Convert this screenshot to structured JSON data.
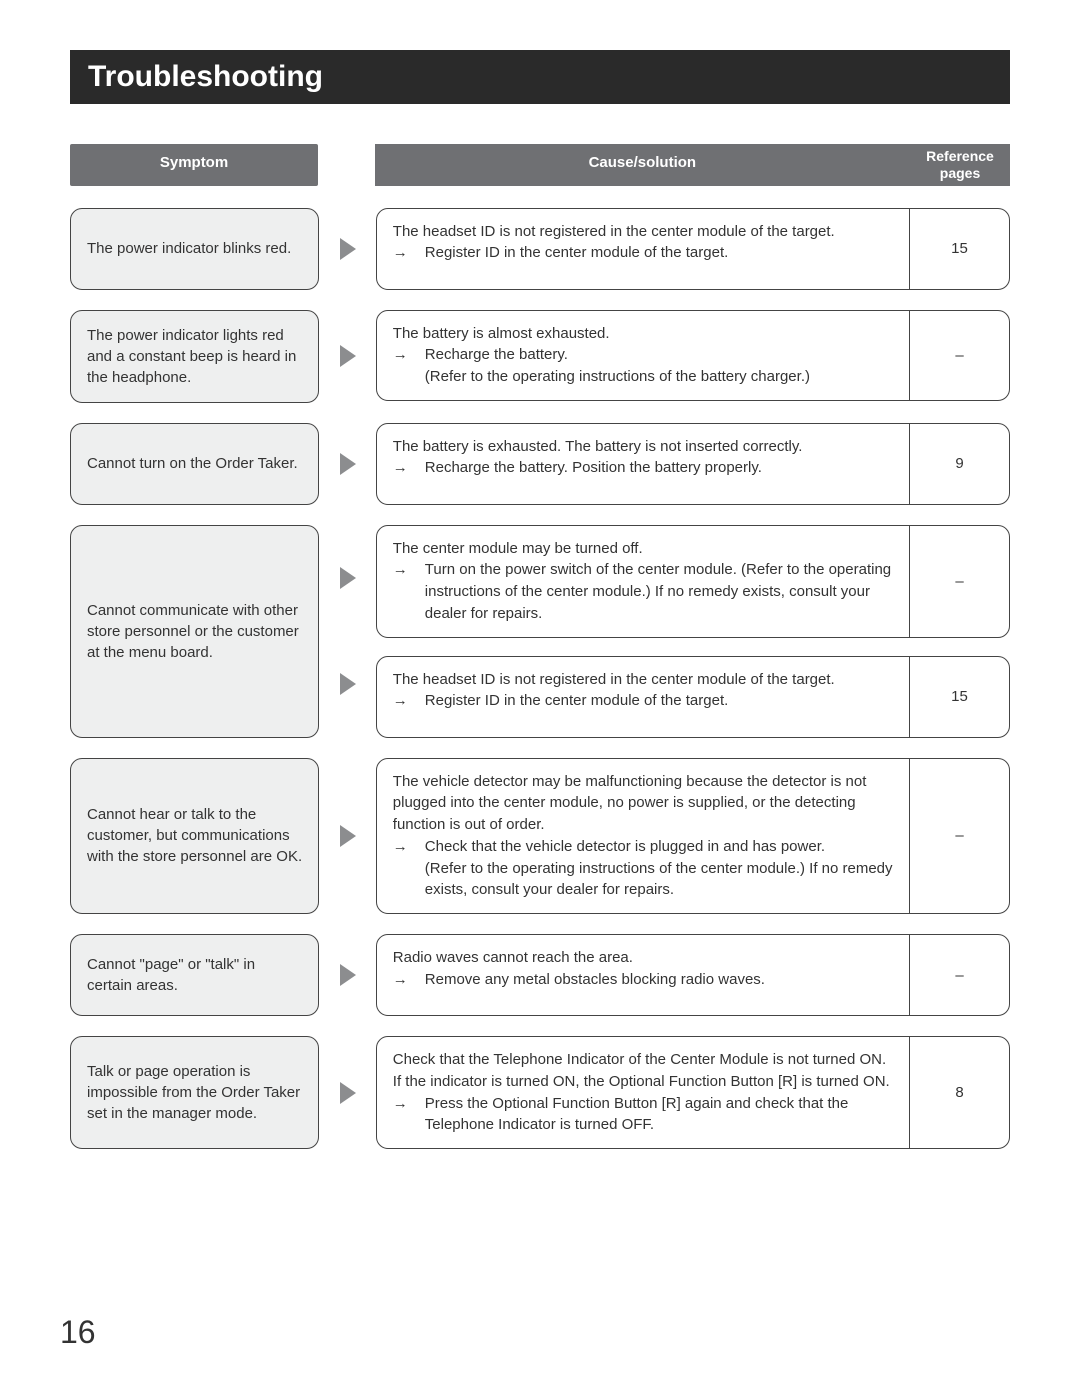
{
  "pageTitle": "Troubleshooting",
  "pageNumber": "16",
  "headers": {
    "symptom": "Symptom",
    "cause": "Cause/solution",
    "reference": "Reference pages"
  },
  "rows": [
    {
      "symptom": "The power indicator blinks red.",
      "causes": [
        {
          "line1": "The headset ID is not registered in the center module of the target.",
          "solution": "Register ID in the center module of the target.",
          "ref": "15"
        }
      ]
    },
    {
      "symptom": "The power indicator lights red and a constant beep is heard in the headphone.",
      "causes": [
        {
          "line1": "The battery is almost exhausted.",
          "solution": "Recharge the battery.",
          "extra": "(Refer to the operating instructions of the battery charger.)",
          "ref": "–"
        }
      ]
    },
    {
      "symptom": "Cannot turn on the Order Taker.",
      "causes": [
        {
          "line1": "The battery is exhausted. The battery is not inserted correctly.",
          "solution": "Recharge the battery. Position the battery properly.",
          "ref": "9"
        }
      ]
    },
    {
      "symptom": "Cannot communicate with other store personnel or the customer at the menu board.",
      "causes": [
        {
          "line1": "The center module may be turned off.",
          "solution": "Turn on the power switch of the center module. (Refer to the operating instructions of the center module.) If no remedy exists, consult your dealer for repairs.",
          "ref": "–"
        },
        {
          "line1": "The headset ID is not registered in the center module of the target.",
          "solution": "Register ID in the center module of the target.",
          "ref": "15"
        }
      ]
    },
    {
      "symptom": "Cannot hear or talk to the customer, but communications with the store personnel are OK.",
      "causes": [
        {
          "line1": "The vehicle detector may be malfunctioning because the detector is not plugged into the center module, no power is supplied, or the detecting function is out of order.",
          "solution": "Check that the vehicle detector is plugged in and has power.",
          "extra": "(Refer to the operating instructions of the center module.) If no remedy exists, consult your dealer for repairs.",
          "ref": "–"
        }
      ]
    },
    {
      "symptom": "Cannot \"page\" or \"talk\" in certain areas.",
      "causes": [
        {
          "line1": "Radio waves cannot reach the area.",
          "solution": "Remove any metal obstacles blocking radio waves.",
          "ref": "–"
        }
      ]
    },
    {
      "symptom": "Talk or page operation is impossible from the Order Taker set in the manager mode.",
      "causes": [
        {
          "line1": "Check that the Telephone Indicator of the Center Module is not turned ON.",
          "line2": "If the indicator is turned ON, the Optional Function Button [R] is turned ON.",
          "solution": "Press the Optional Function Button [R] again and check that the Telephone Indicator is turned OFF.",
          "ref": "8"
        }
      ]
    }
  ]
}
